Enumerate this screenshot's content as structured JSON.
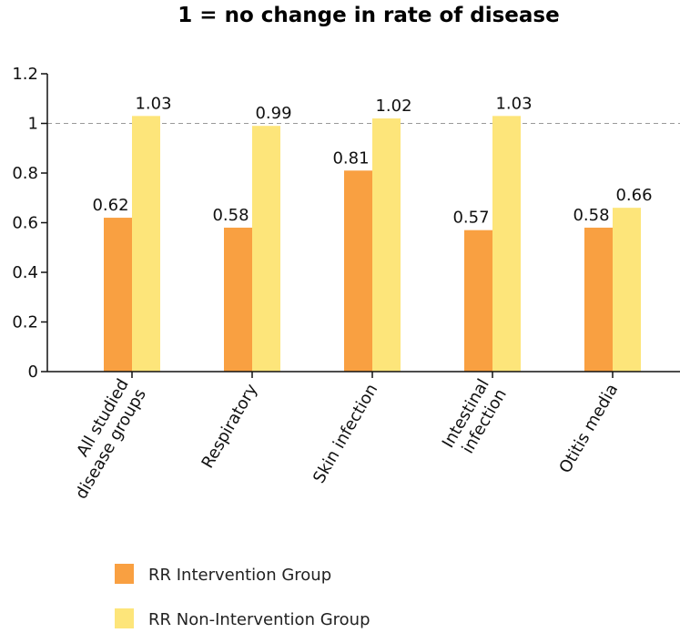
{
  "chart_data": {
    "type": "bar",
    "title": "1 = no change in rate of disease",
    "xlabel": "",
    "ylabel": "",
    "ylim": [
      0,
      1.2
    ],
    "yticks": [
      "0",
      "0.2",
      "0.4",
      "0.6",
      "0.8",
      "1",
      "1.2"
    ],
    "reference_line": 1,
    "grid": false,
    "legend_position": "bottom-left",
    "categories": [
      [
        "All studied",
        "disease groups"
      ],
      [
        "Respiratory"
      ],
      [
        "Skin infection"
      ],
      [
        "Intestinal",
        "infection"
      ],
      [
        "Otitis media"
      ]
    ],
    "series": [
      {
        "name": "RR Intervention Group",
        "color": "#F9A041",
        "values": [
          0.62,
          0.58,
          0.81,
          0.57,
          0.58
        ],
        "labels": [
          "0.62",
          "0.58",
          "0.81",
          "0.57",
          "0.58"
        ]
      },
      {
        "name": "RR Non-Intervention Group",
        "color": "#FDE57A",
        "values": [
          1.03,
          0.99,
          1.02,
          1.03,
          0.66
        ],
        "labels": [
          "1.03",
          "0.99",
          "1.02",
          "1.03",
          "0.66"
        ]
      }
    ]
  }
}
